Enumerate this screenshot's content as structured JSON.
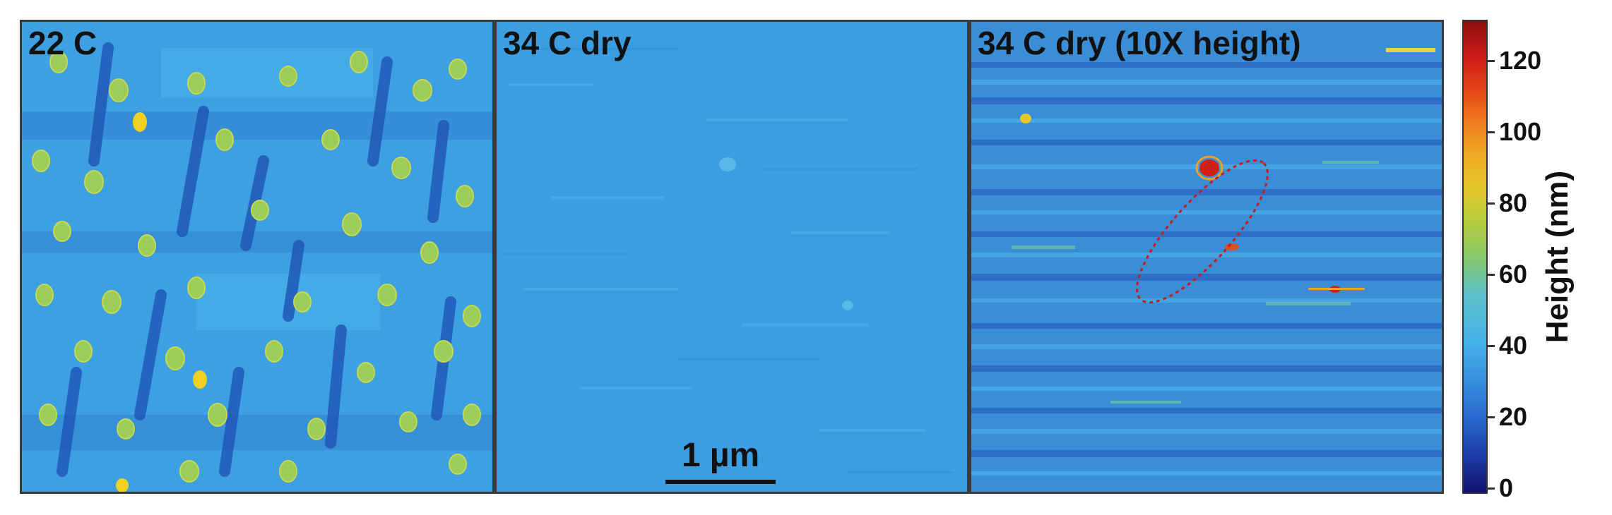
{
  "panels": [
    {
      "label": "22 C"
    },
    {
      "label": "34 C dry"
    },
    {
      "label": "34 C dry (10X height)"
    }
  ],
  "scale_bar": {
    "label": "1 µm"
  },
  "colorbar": {
    "title": "Height (nm)",
    "ticks": [
      "0",
      "20",
      "40",
      "60",
      "80",
      "100",
      "120"
    ],
    "range": [
      0,
      130
    ],
    "colors": {
      "low": "#14146e",
      "mid": "#44b2e8",
      "high": "#8a1010"
    }
  }
}
